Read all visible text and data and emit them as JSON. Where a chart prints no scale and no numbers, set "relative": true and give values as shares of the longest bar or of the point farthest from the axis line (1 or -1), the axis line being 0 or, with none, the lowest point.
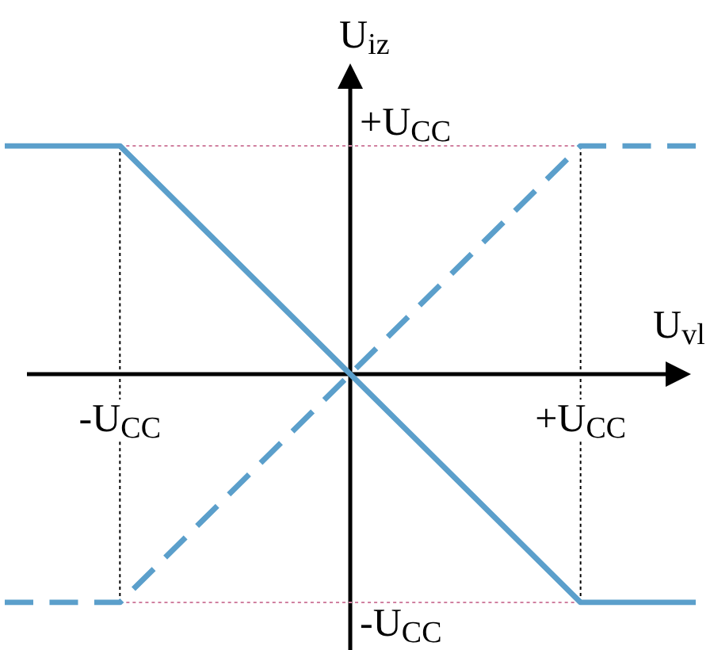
{
  "chart_data": {
    "type": "line",
    "relative": true,
    "grid": false,
    "xlabel": "U$_{vl}$",
    "ylabel": "U$_{iz}$",
    "categories": [
      null,
      "-U$_{CC}$",
      null,
      null,
      null,
      "+U$_{CC}$",
      null
    ],
    "annotations": [
      "+U$_{CC}$",
      "-U$_{CC}$"
    ],
    "series": [
      {
        "color": "#5b9fcb",
        "line_style": "solid",
        "values": [
          1,
          1,
          0.5,
          0,
          -0.5,
          -1,
          -1
        ]
      },
      {
        "color": "#5b9fcb",
        "line_style": "dashed",
        "values": [
          -1,
          -1,
          -0.5,
          0,
          0.5,
          1,
          1
        ]
      },
      {
        "color": "#000000",
        "line_style": "dotted",
        "x": [
          "-U$_{CC}$",
          "-U$_{CC}$"
        ],
        "values": [
          1,
          -1
        ]
      },
      {
        "color": "#000000",
        "line_style": "dotted",
        "x": [
          "+U$_{CC}$",
          "+U$_{CC}$"
        ],
        "values": [
          1,
          -1
        ]
      },
      {
        "color": "#d080a0",
        "line_style": "dotted",
        "values": [
          null,
          1,
          1,
          1,
          1,
          1,
          null
        ]
      },
      {
        "color": "#d080a0",
        "line_style": "dotted",
        "values": [
          null,
          -1,
          -1,
          -1,
          -1,
          -1,
          null
        ]
      }
    ]
  }
}
